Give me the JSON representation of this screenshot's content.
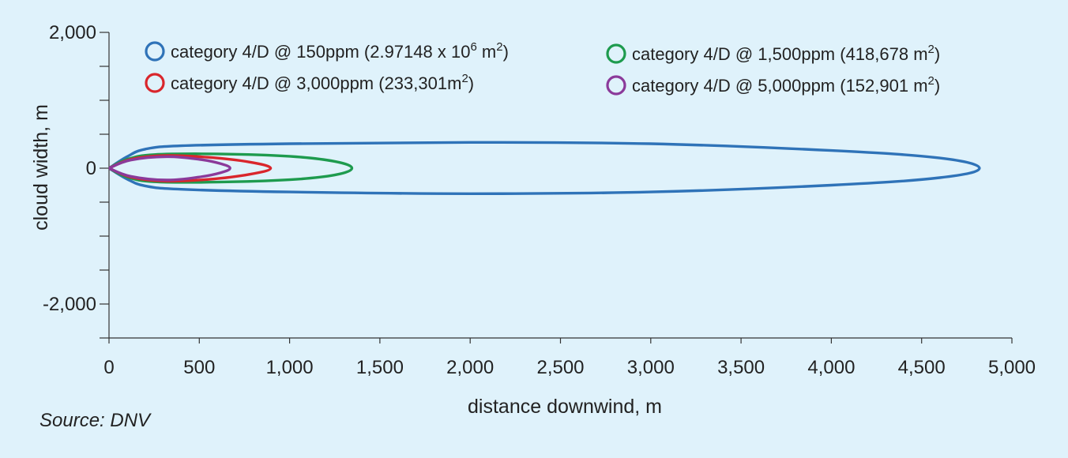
{
  "chart_data": {
    "type": "line",
    "xlabel": "distance downwind, m",
    "ylabel": "cloud width, m",
    "xlim": [
      0,
      5000
    ],
    "ylim": [
      -2500,
      2000
    ],
    "x_ticks": [
      0,
      500,
      1000,
      1500,
      2000,
      2500,
      3000,
      3500,
      4000,
      4500,
      5000
    ],
    "x_tick_labels": [
      "0",
      "500",
      "1,000",
      "1,500",
      "2,000",
      "2,500",
      "3,000",
      "3,500",
      "4,000",
      "4,500",
      "5,000"
    ],
    "y_ticks": [
      2000,
      1500,
      1000,
      500,
      0,
      -500,
      -1000,
      -1500,
      -2000,
      -2500
    ],
    "y_tick_labels": [
      {
        "value": 2000,
        "label": "2,000"
      },
      {
        "value": 0,
        "label": "0"
      },
      {
        "value": -2000,
        "label": "-2,000"
      }
    ],
    "grid": false,
    "legend_position": "top",
    "series": [
      {
        "label_main": "category 4/D @ 150ppm (2.97148 x 10",
        "label_sup": "6",
        "label_mid": " m",
        "label_sup2": "2",
        "label_end": ")",
        "color": "#2f73b8",
        "points": [
          [
            0,
            0
          ],
          [
            100,
            170
          ],
          [
            200,
            280
          ],
          [
            400,
            330
          ],
          [
            1000,
            360
          ],
          [
            2000,
            380
          ],
          [
            3000,
            360
          ],
          [
            4000,
            260
          ],
          [
            4600,
            150
          ],
          [
            4820,
            0
          ],
          [
            4600,
            -140
          ],
          [
            4000,
            -250
          ],
          [
            3000,
            -350
          ],
          [
            2000,
            -375
          ],
          [
            1000,
            -350
          ],
          [
            400,
            -310
          ],
          [
            200,
            -260
          ],
          [
            100,
            -160
          ],
          [
            0,
            0
          ]
        ]
      },
      {
        "label_main": "category 4/D @ 1,500ppm (418,678 m",
        "label_sup": "2",
        "label_mid": "",
        "label_sup2": "",
        "label_end": ")",
        "color": "#1e9b4e",
        "points": [
          [
            0,
            0
          ],
          [
            100,
            130
          ],
          [
            250,
            200
          ],
          [
            600,
            210
          ],
          [
            1000,
            175
          ],
          [
            1250,
            100
          ],
          [
            1345,
            0
          ],
          [
            1250,
            -100
          ],
          [
            1000,
            -170
          ],
          [
            600,
            -205
          ],
          [
            250,
            -200
          ],
          [
            100,
            -130
          ],
          [
            0,
            0
          ]
        ]
      },
      {
        "label_main": "category 4/D @ 3,000ppm (233,301m",
        "label_sup": "2",
        "label_mid": "",
        "label_sup2": "",
        "label_end": ")",
        "color": "#d9262c",
        "points": [
          [
            0,
            0
          ],
          [
            120,
            130
          ],
          [
            300,
            185
          ],
          [
            550,
            160
          ],
          [
            780,
            90
          ],
          [
            895,
            0
          ],
          [
            780,
            -90
          ],
          [
            550,
            -165
          ],
          [
            300,
            -190
          ],
          [
            120,
            -130
          ],
          [
            0,
            0
          ]
        ]
      },
      {
        "label_main": "category 4/D @ 5,000ppm (152,901 m",
        "label_sup": "2",
        "label_mid": "",
        "label_sup2": "",
        "label_end": ")",
        "color": "#8b3a9a",
        "points": [
          [
            0,
            0
          ],
          [
            120,
            120
          ],
          [
            320,
            170
          ],
          [
            500,
            130
          ],
          [
            620,
            65
          ],
          [
            670,
            0
          ],
          [
            620,
            -65
          ],
          [
            500,
            -130
          ],
          [
            320,
            -175
          ],
          [
            120,
            -120
          ],
          [
            0,
            0
          ]
        ]
      }
    ]
  },
  "source": "Source: DNV"
}
